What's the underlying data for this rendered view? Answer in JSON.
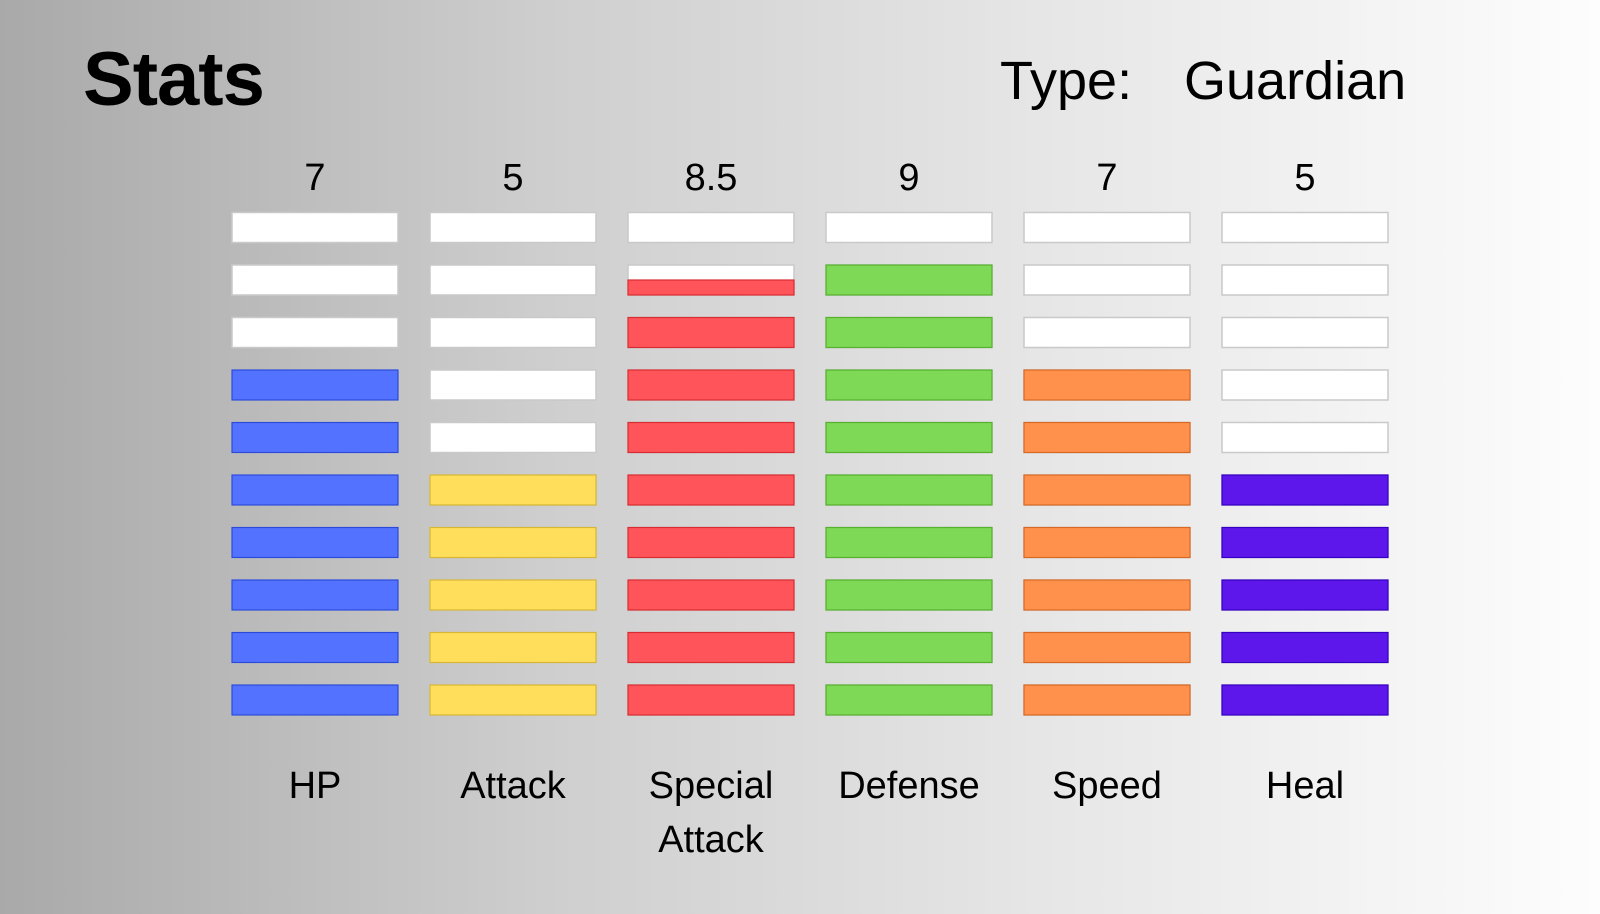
{
  "header": {
    "title": "Stats",
    "type_label": "Type:",
    "type_value": "Guardian"
  },
  "chart_data": {
    "type": "bar",
    "title": "Stats",
    "ylim": [
      0,
      10
    ],
    "segments": 10,
    "categories": [
      {
        "name": "HP",
        "lines": [
          "HP"
        ],
        "value_label": "7",
        "value": 7,
        "color": "#5272ff"
      },
      {
        "name": "Attack",
        "lines": [
          "Attack"
        ],
        "value_label": "5",
        "value": 5,
        "color": "#ffde5c"
      },
      {
        "name": "Special Attack",
        "lines": [
          "Special",
          "Attack"
        ],
        "value_label": "8.5",
        "value": 8.5,
        "color": "#ff5459"
      },
      {
        "name": "Defense",
        "lines": [
          "Defense"
        ],
        "value_label": "9",
        "value": 9,
        "color": "#7ed957"
      },
      {
        "name": "Speed",
        "lines": [
          "Speed"
        ],
        "value_label": "7",
        "value": 7,
        "color": "#ff914d"
      },
      {
        "name": "Heal",
        "lines": [
          "Heal"
        ],
        "value_label": "5",
        "value": 5,
        "color": "#5e17eb"
      }
    ],
    "empty_color": "#ffffff"
  }
}
